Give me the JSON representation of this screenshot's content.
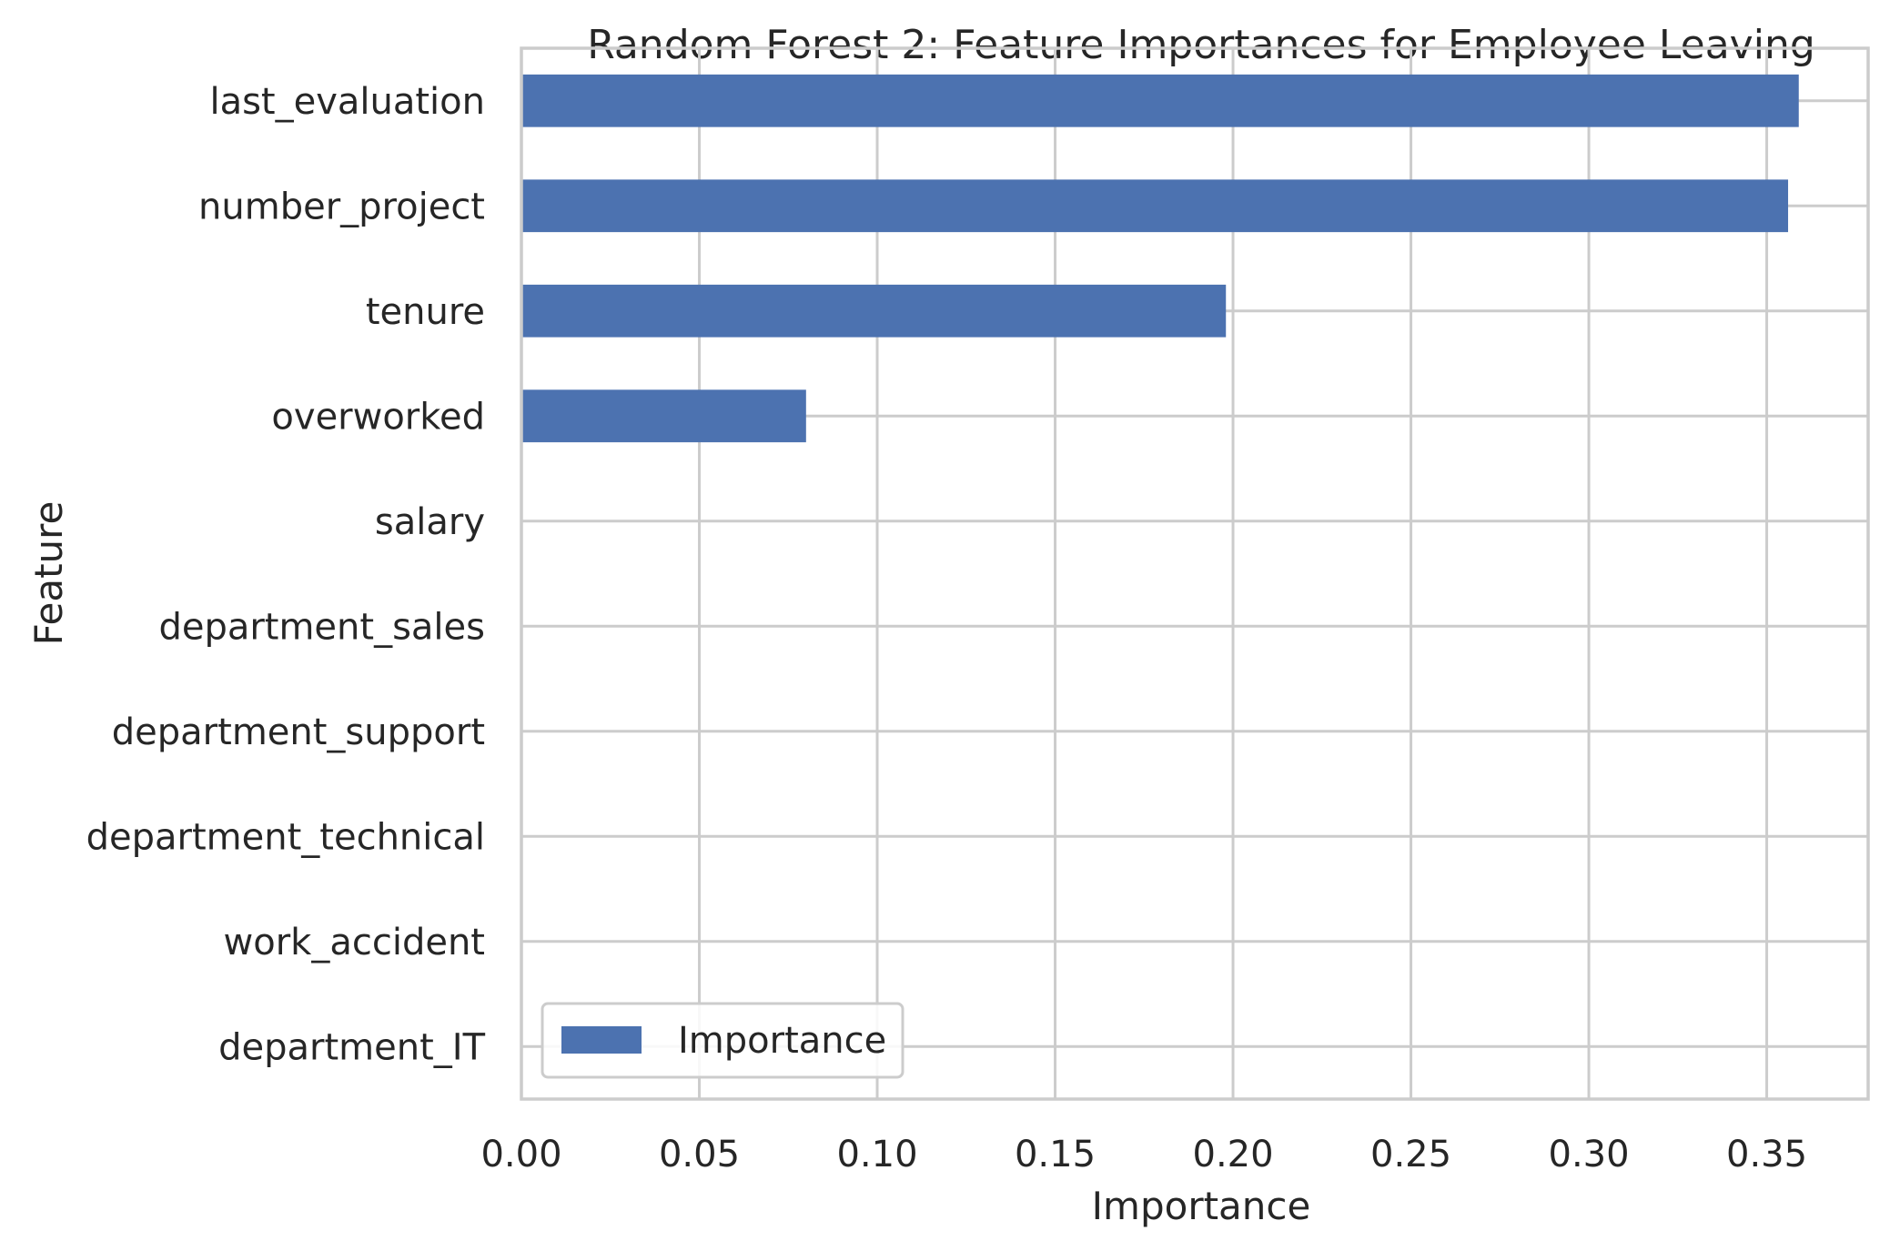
{
  "chart_data": {
    "type": "bar",
    "orientation": "horizontal",
    "title": "Random Forest 2: Feature Importances for Employee Leaving",
    "xlabel": "Importance",
    "ylabel": "Feature",
    "categories": [
      "last_evaluation",
      "number_project",
      "tenure",
      "overworked",
      "salary",
      "department_sales",
      "department_support",
      "department_technical",
      "work_accident",
      "department_IT"
    ],
    "series": [
      {
        "name": "Importance",
        "color": "#4c72b0",
        "values": [
          0.359,
          0.356,
          0.198,
          0.08,
          0.0,
          0.0,
          0.0,
          0.0,
          0.0,
          0.0
        ]
      }
    ],
    "xlim": [
      0,
      0.3785
    ],
    "xticks": [
      "0.00",
      "0.05",
      "0.10",
      "0.15",
      "0.20",
      "0.25",
      "0.30",
      "0.35"
    ],
    "xtick_values": [
      0,
      0.05,
      0.1,
      0.15,
      0.2,
      0.25,
      0.3,
      0.35
    ],
    "grid": true,
    "legend_position": "lower-left"
  }
}
